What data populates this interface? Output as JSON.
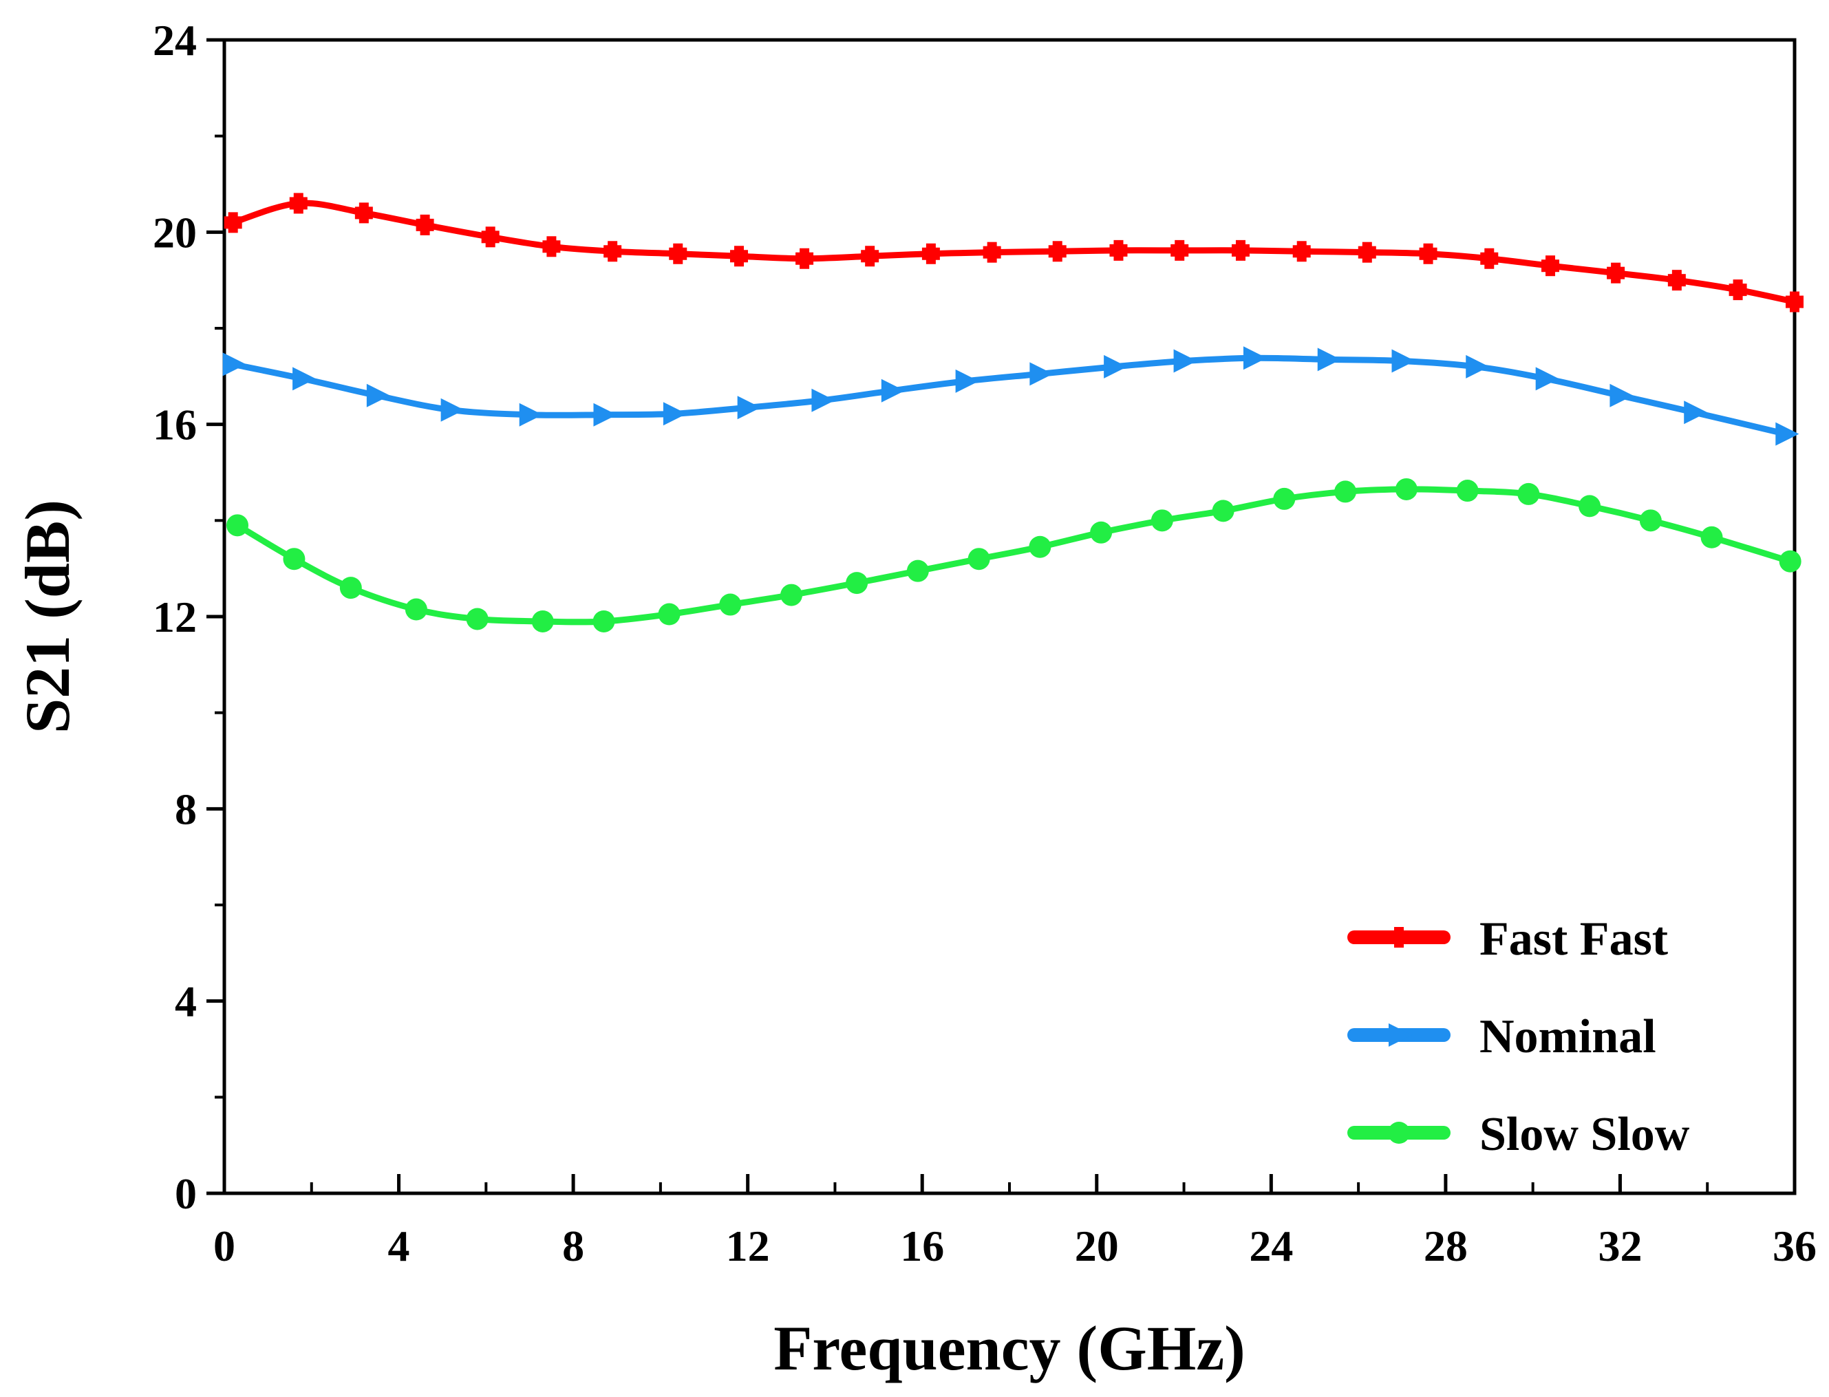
{
  "chart_data": {
    "type": "line",
    "title": "",
    "xlabel": "Frequency (GHz)",
    "ylabel": "S21 (dB)",
    "xlim": [
      0,
      36
    ],
    "ylim": [
      0,
      24
    ],
    "xticks": [
      0,
      4,
      8,
      12,
      16,
      20,
      24,
      28,
      32,
      36
    ],
    "xtick_labels": [
      "0",
      "4",
      "8",
      "12",
      "16",
      "20",
      "24",
      "28",
      "32",
      "36"
    ],
    "yticks": [
      0,
      4,
      8,
      12,
      16,
      20,
      24
    ],
    "ytick_labels": [
      "0",
      "4",
      "8",
      "12",
      "16",
      "20",
      "24"
    ],
    "grid": false,
    "legend_position": "bottom-right",
    "series": [
      {
        "name": "Fast Fast",
        "color": "#ff0000",
        "marker": "cross",
        "x": [
          0.2,
          1.7,
          3.2,
          4.6,
          6.1,
          7.5,
          8.9,
          10.4,
          11.8,
          13.3,
          14.8,
          16.2,
          17.6,
          19.1,
          20.5,
          21.9,
          23.3,
          24.7,
          26.2,
          27.6,
          29.0,
          30.4,
          31.9,
          33.3,
          34.7,
          36.0
        ],
        "y": [
          20.2,
          20.6,
          20.4,
          20.15,
          19.9,
          19.7,
          19.6,
          19.55,
          19.5,
          19.45,
          19.5,
          19.55,
          19.58,
          19.6,
          19.62,
          19.62,
          19.62,
          19.6,
          19.58,
          19.55,
          19.45,
          19.3,
          19.15,
          19.0,
          18.8,
          18.55
        ]
      },
      {
        "name": "Nominal",
        "color": "#1f8ff0",
        "marker": "triangle-right",
        "x": [
          0.2,
          1.8,
          3.5,
          5.2,
          7.0,
          8.7,
          10.3,
          12.0,
          13.7,
          15.3,
          17.0,
          18.7,
          20.4,
          22.0,
          23.6,
          25.3,
          27.0,
          28.7,
          30.3,
          32.0,
          33.7,
          35.8
        ],
        "y": [
          17.25,
          16.95,
          16.6,
          16.3,
          16.2,
          16.2,
          16.22,
          16.35,
          16.5,
          16.7,
          16.9,
          17.05,
          17.2,
          17.32,
          17.38,
          17.35,
          17.32,
          17.2,
          16.95,
          16.6,
          16.25,
          15.8
        ]
      },
      {
        "name": "Slow Slow",
        "color": "#22ee44",
        "marker": "circle",
        "x": [
          0.3,
          1.6,
          2.9,
          4.4,
          5.8,
          7.3,
          8.7,
          10.2,
          11.6,
          13.0,
          14.5,
          15.9,
          17.3,
          18.7,
          20.1,
          21.5,
          22.9,
          24.3,
          25.7,
          27.1,
          28.5,
          29.9,
          31.3,
          32.7,
          34.1,
          35.9
        ],
        "y": [
          13.9,
          13.2,
          12.6,
          12.15,
          11.95,
          11.9,
          11.9,
          12.05,
          12.25,
          12.45,
          12.7,
          12.95,
          13.2,
          13.45,
          13.75,
          14.0,
          14.2,
          14.45,
          14.6,
          14.65,
          14.62,
          14.55,
          14.3,
          14.0,
          13.65,
          13.15
        ]
      }
    ]
  }
}
